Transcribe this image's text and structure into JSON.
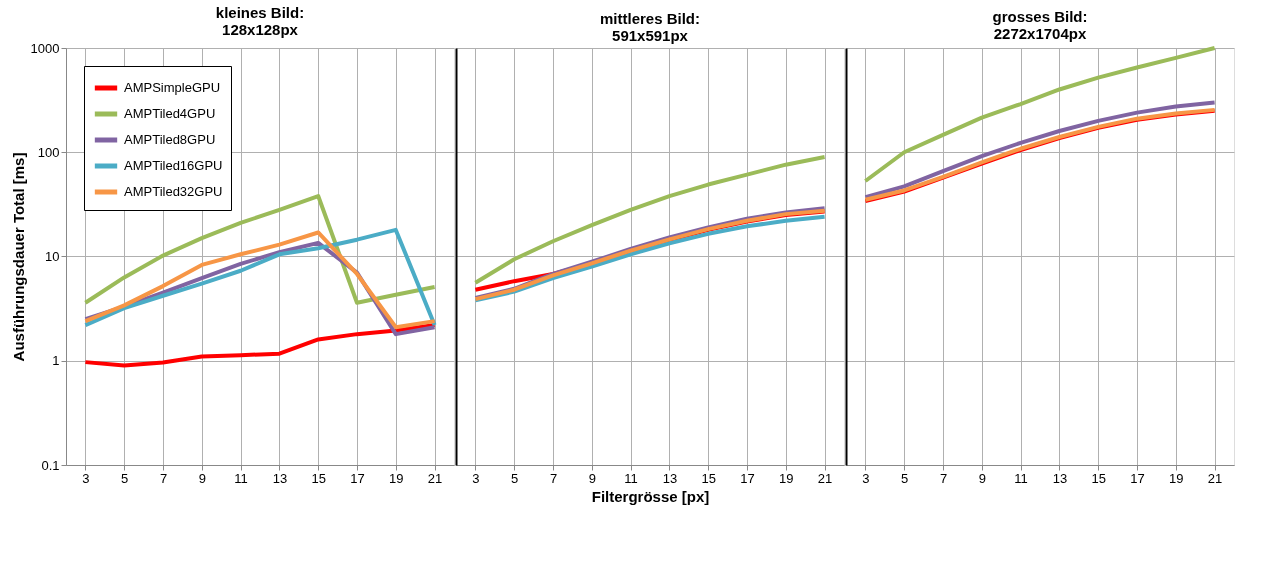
{
  "chart_data": [
    {
      "type": "line",
      "title": "kleines Bild:\n128x128px",
      "ylabel": "Ausführungsdauer Total [ms]",
      "categories": [
        "3",
        "5",
        "7",
        "9",
        "11",
        "13",
        "15",
        "17",
        "19",
        "21"
      ],
      "log": true,
      "ylim": [
        0.1,
        1000
      ],
      "yticks": [
        0.1,
        1,
        10,
        100,
        1000
      ],
      "grid": true,
      "legend": "top left",
      "line_style": "solid",
      "series": [
        {
          "name": "AMPSimpleGPU",
          "color": "#ff0000",
          "values": [
            0.97,
            0.9,
            0.96,
            1.1,
            1.13,
            1.17,
            1.6,
            1.8,
            1.95,
            2.2
          ]
        },
        {
          "name": "AMPTiled4GPU",
          "color": "#9bbb59",
          "values": [
            3.6,
            6.3,
            10.2,
            15,
            21,
            28,
            38,
            3.6,
            4.3,
            5.1
          ]
        },
        {
          "name": "AMPTiled8GPU",
          "color": "#8064a2",
          "values": [
            2.5,
            3.3,
            4.5,
            6.2,
            8.5,
            11,
            13.5,
            7,
            1.8,
            2.1
          ]
        },
        {
          "name": "AMPTiled16GPU",
          "color": "#4bacc6",
          "values": [
            2.2,
            3.2,
            4.2,
            5.5,
            7.3,
            10.5,
            12,
            14.5,
            18,
            2.2
          ]
        },
        {
          "name": "AMPTiled32GPU",
          "color": "#f79646",
          "values": [
            2.4,
            3.4,
            5.2,
            8.3,
            10.5,
            13,
            17,
            6.8,
            2.1,
            2.4
          ]
        }
      ]
    },
    {
      "type": "line",
      "title": "mittleres Bild:\n591x591px",
      "xlabel": "Filtergrösse [px]",
      "categories": [
        "3",
        "5",
        "7",
        "9",
        "11",
        "13",
        "15",
        "17",
        "19",
        "21"
      ],
      "log": true,
      "ylim": [
        0.1,
        1000
      ],
      "yticks": [
        0.1,
        1,
        10,
        100,
        1000
      ],
      "grid": true,
      "tick_labels": "x",
      "line_style": "solid",
      "series": [
        {
          "name": "AMPSimpleGPU",
          "color": "#ff0000",
          "values": [
            4.8,
            5.8,
            6.8,
            8.6,
            11.2,
            14.4,
            18,
            21.6,
            25,
            27
          ]
        },
        {
          "name": "AMPTiled4GPU",
          "color": "#9bbb59",
          "values": [
            5.6,
            9.4,
            14,
            20,
            28,
            38,
            49,
            61,
            76,
            90
          ]
        },
        {
          "name": "AMPTiled8GPU",
          "color": "#8064a2",
          "values": [
            4.0,
            4.9,
            6.8,
            8.9,
            11.8,
            15.2,
            19,
            23,
            26.5,
            29
          ]
        },
        {
          "name": "AMPTiled16GPU",
          "color": "#4bacc6",
          "values": [
            3.8,
            4.6,
            6.2,
            8.0,
            10.5,
            13.4,
            16.5,
            19.5,
            22,
            24
          ]
        },
        {
          "name": "AMPTiled32GPU",
          "color": "#f79646",
          "values": [
            3.9,
            4.8,
            6.6,
            8.6,
            11.4,
            14.6,
            18.3,
            22,
            25.5,
            27.5
          ]
        }
      ]
    },
    {
      "type": "line",
      "title": "grosses Bild:\n2272x1704px",
      "categories": [
        "3",
        "5",
        "7",
        "9",
        "11",
        "13",
        "15",
        "17",
        "19",
        "21"
      ],
      "log": true,
      "ylim": [
        0.1,
        1000
      ],
      "yticks": [
        0.1,
        1,
        10,
        100,
        1000
      ],
      "grid": true,
      "tick_labels": "x",
      "line_style": "solid",
      "series": [
        {
          "name": "AMPSimpleGPU",
          "color": "#ff0000",
          "values": [
            34,
            42,
            57,
            78,
            105,
            137,
            172,
            205,
            230,
            250
          ]
        },
        {
          "name": "AMPTiled4GPU",
          "color": "#9bbb59",
          "values": [
            53,
            100,
            147,
            215,
            290,
            400,
            520,
            650,
            805,
            1000
          ]
        },
        {
          "name": "AMPTiled8GPU",
          "color": "#8064a2",
          "values": [
            37,
            47,
            66,
            92,
            123,
            160,
            200,
            240,
            275,
            300
          ]
        },
        {
          "name": "AMPTiled16GPU",
          "color": "#4bacc6",
          "values": [
            null,
            null,
            null,
            null,
            null,
            null,
            null,
            null,
            null,
            null
          ]
        },
        {
          "name": "AMPTiled32GPU",
          "color": "#f79646",
          "values": [
            35,
            43,
            58,
            80,
            108,
            140,
            175,
            210,
            235,
            255
          ]
        }
      ]
    }
  ]
}
